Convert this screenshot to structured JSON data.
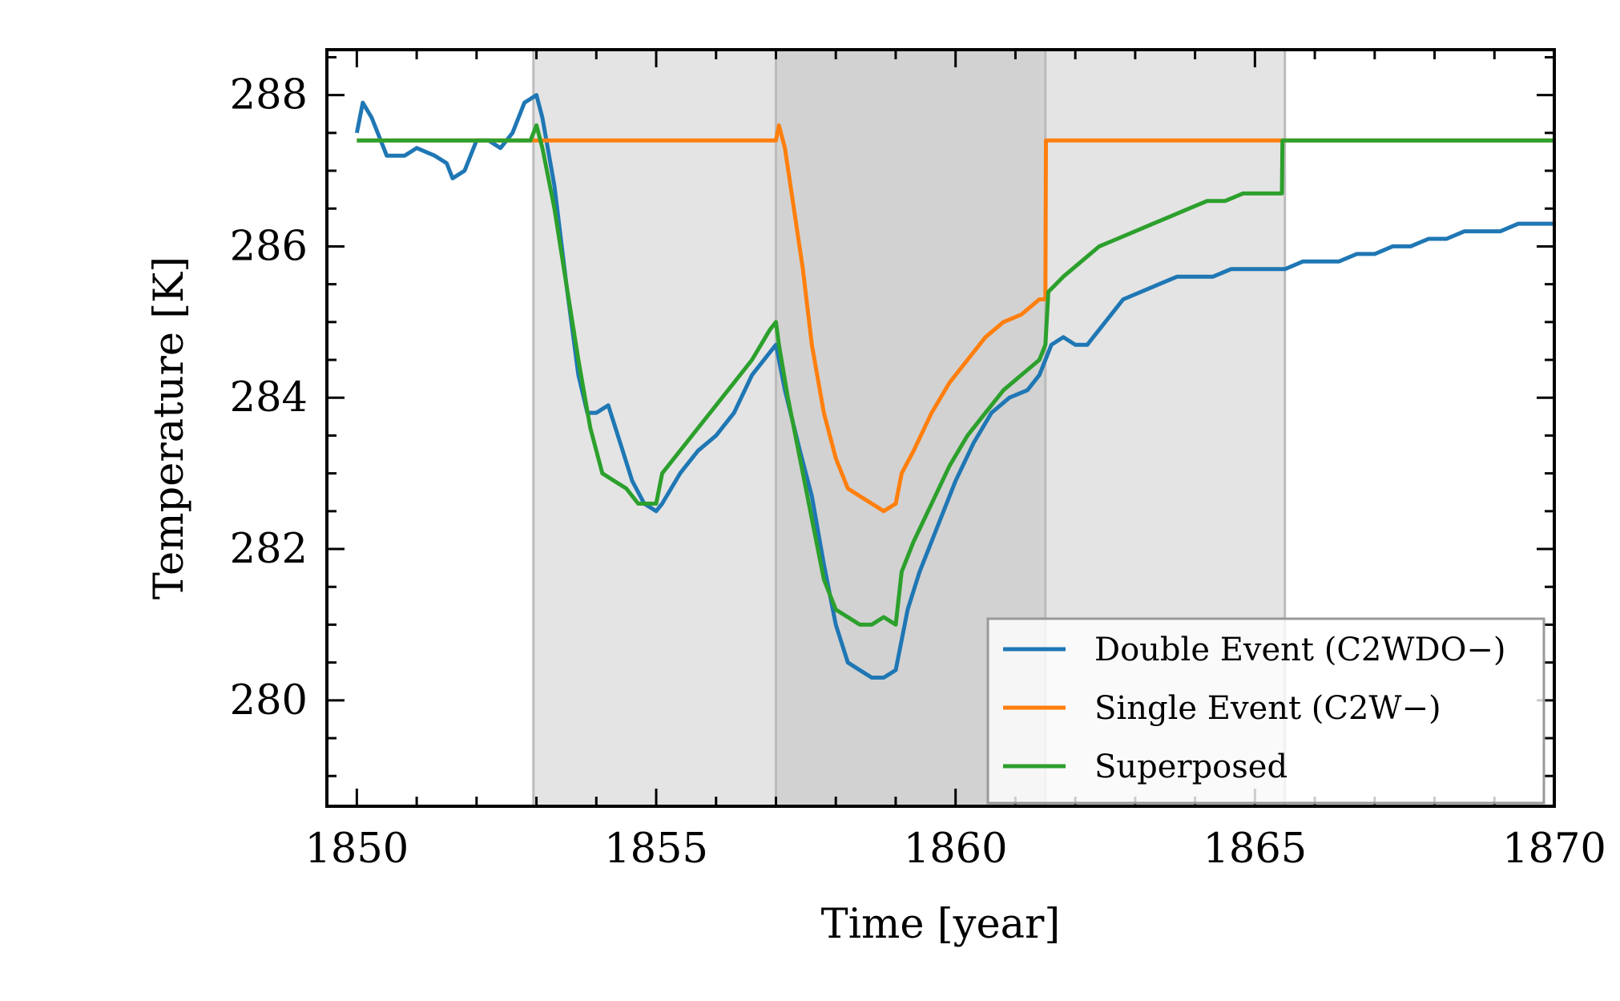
{
  "chart_data": {
    "type": "line",
    "title": "",
    "xlabel": "Time [year]",
    "ylabel": "Temperature [K]",
    "xlim": [
      1849.5,
      1870
    ],
    "ylim": [
      278.6,
      288.6
    ],
    "xticks": [
      1850,
      1855,
      1860,
      1865,
      1870
    ],
    "xtick_labels": [
      "1850",
      "1855",
      "1860",
      "1865",
      "1870"
    ],
    "yticks": [
      280,
      282,
      284,
      286,
      288
    ],
    "ytick_labels": [
      "280",
      "282",
      "284",
      "286",
      "288"
    ],
    "grid": false,
    "legend_position": "lower-right",
    "shaded_regions": [
      {
        "x0": 1852.95,
        "x1": 1857.0,
        "color": "#e4e4e4"
      },
      {
        "x0": 1857.0,
        "x1": 1861.5,
        "color": "#d2d2d2"
      },
      {
        "x0": 1861.5,
        "x1": 1865.5,
        "color": "#e4e4e4"
      }
    ],
    "region_boundaries": [
      1852.95,
      1857.0,
      1861.5,
      1865.5
    ],
    "series": [
      {
        "name": "Double Event (C2WDO−)",
        "color": "#1f77b4",
        "points": [
          [
            1850.0,
            287.5
          ],
          [
            1850.1,
            287.9
          ],
          [
            1850.25,
            287.7
          ],
          [
            1850.5,
            287.2
          ],
          [
            1850.8,
            287.2
          ],
          [
            1851.0,
            287.3
          ],
          [
            1851.3,
            287.2
          ],
          [
            1851.5,
            287.1
          ],
          [
            1851.6,
            286.9
          ],
          [
            1851.8,
            287.0
          ],
          [
            1852.0,
            287.4
          ],
          [
            1852.2,
            287.4
          ],
          [
            1852.4,
            287.3
          ],
          [
            1852.6,
            287.5
          ],
          [
            1852.8,
            287.9
          ],
          [
            1853.0,
            288.0
          ],
          [
            1853.1,
            287.7
          ],
          [
            1853.3,
            286.8
          ],
          [
            1853.5,
            285.5
          ],
          [
            1853.7,
            284.3
          ],
          [
            1853.85,
            283.8
          ],
          [
            1854.0,
            283.8
          ],
          [
            1854.2,
            283.9
          ],
          [
            1854.4,
            283.4
          ],
          [
            1854.6,
            282.9
          ],
          [
            1854.8,
            282.6
          ],
          [
            1855.0,
            282.5
          ],
          [
            1855.1,
            282.6
          ],
          [
            1855.4,
            283.0
          ],
          [
            1855.7,
            283.3
          ],
          [
            1856.0,
            283.5
          ],
          [
            1856.3,
            283.8
          ],
          [
            1856.6,
            284.3
          ],
          [
            1856.9,
            284.6
          ],
          [
            1857.0,
            284.7
          ],
          [
            1857.15,
            284.1
          ],
          [
            1857.4,
            283.3
          ],
          [
            1857.6,
            282.7
          ],
          [
            1857.8,
            281.8
          ],
          [
            1858.0,
            281.0
          ],
          [
            1858.2,
            280.5
          ],
          [
            1858.4,
            280.4
          ],
          [
            1858.6,
            280.3
          ],
          [
            1858.8,
            280.3
          ],
          [
            1859.0,
            280.4
          ],
          [
            1859.2,
            281.2
          ],
          [
            1859.4,
            281.7
          ],
          [
            1859.6,
            282.1
          ],
          [
            1859.8,
            282.5
          ],
          [
            1860.0,
            282.9
          ],
          [
            1860.3,
            283.4
          ],
          [
            1860.6,
            283.8
          ],
          [
            1860.9,
            284.0
          ],
          [
            1861.2,
            284.1
          ],
          [
            1861.4,
            284.3
          ],
          [
            1861.6,
            284.7
          ],
          [
            1861.8,
            284.8
          ],
          [
            1862.0,
            284.7
          ],
          [
            1862.2,
            284.7
          ],
          [
            1862.5,
            285.0
          ],
          [
            1862.8,
            285.3
          ],
          [
            1863.1,
            285.4
          ],
          [
            1863.4,
            285.5
          ],
          [
            1863.7,
            285.6
          ],
          [
            1864.0,
            285.6
          ],
          [
            1864.3,
            285.6
          ],
          [
            1864.6,
            285.7
          ],
          [
            1864.9,
            285.7
          ],
          [
            1865.2,
            285.7
          ],
          [
            1865.5,
            285.7
          ],
          [
            1865.8,
            285.8
          ],
          [
            1866.1,
            285.8
          ],
          [
            1866.4,
            285.8
          ],
          [
            1866.7,
            285.9
          ],
          [
            1867.0,
            285.9
          ],
          [
            1867.3,
            286.0
          ],
          [
            1867.6,
            286.0
          ],
          [
            1867.9,
            286.1
          ],
          [
            1868.2,
            286.1
          ],
          [
            1868.5,
            286.2
          ],
          [
            1868.8,
            286.2
          ],
          [
            1869.1,
            286.2
          ],
          [
            1869.4,
            286.3
          ],
          [
            1869.7,
            286.3
          ],
          [
            1870.0,
            286.3
          ]
        ]
      },
      {
        "name": "Single Event (C2W−)",
        "color": "#ff7f0e",
        "points": [
          [
            1850.0,
            287.4
          ],
          [
            1853.0,
            287.4
          ],
          [
            1857.0,
            287.4
          ],
          [
            1857.05,
            287.6
          ],
          [
            1857.15,
            287.3
          ],
          [
            1857.3,
            286.5
          ],
          [
            1857.45,
            285.7
          ],
          [
            1857.6,
            284.7
          ],
          [
            1857.8,
            283.8
          ],
          [
            1858.0,
            283.2
          ],
          [
            1858.2,
            282.8
          ],
          [
            1858.4,
            282.7
          ],
          [
            1858.6,
            282.6
          ],
          [
            1858.8,
            282.5
          ],
          [
            1859.0,
            282.6
          ],
          [
            1859.1,
            283.0
          ],
          [
            1859.3,
            283.3
          ],
          [
            1859.6,
            283.8
          ],
          [
            1859.9,
            284.2
          ],
          [
            1860.2,
            284.5
          ],
          [
            1860.5,
            284.8
          ],
          [
            1860.8,
            285.0
          ],
          [
            1861.1,
            285.1
          ],
          [
            1861.4,
            285.3
          ],
          [
            1861.5,
            285.3
          ],
          [
            1861.51,
            287.4
          ],
          [
            1870.0,
            287.4
          ]
        ]
      },
      {
        "name": "Superposed",
        "color": "#2ca02c",
        "points": [
          [
            1850.0,
            287.4
          ],
          [
            1852.9,
            287.4
          ],
          [
            1853.0,
            287.6
          ],
          [
            1853.1,
            287.3
          ],
          [
            1853.3,
            286.5
          ],
          [
            1853.5,
            285.5
          ],
          [
            1853.7,
            284.5
          ],
          [
            1853.9,
            283.6
          ],
          [
            1854.1,
            283.0
          ],
          [
            1854.3,
            282.9
          ],
          [
            1854.5,
            282.8
          ],
          [
            1854.7,
            282.6
          ],
          [
            1854.9,
            282.6
          ],
          [
            1855.0,
            282.6
          ],
          [
            1855.1,
            283.0
          ],
          [
            1855.4,
            283.3
          ],
          [
            1855.7,
            283.6
          ],
          [
            1856.0,
            283.9
          ],
          [
            1856.3,
            284.2
          ],
          [
            1856.6,
            284.5
          ],
          [
            1856.9,
            284.9
          ],
          [
            1857.0,
            285.0
          ],
          [
            1857.05,
            284.7
          ],
          [
            1857.2,
            284.0
          ],
          [
            1857.4,
            283.2
          ],
          [
            1857.6,
            282.4
          ],
          [
            1857.8,
            281.6
          ],
          [
            1858.0,
            281.2
          ],
          [
            1858.2,
            281.1
          ],
          [
            1858.4,
            281.0
          ],
          [
            1858.6,
            281.0
          ],
          [
            1858.8,
            281.1
          ],
          [
            1859.0,
            281.0
          ],
          [
            1859.1,
            281.7
          ],
          [
            1859.3,
            282.1
          ],
          [
            1859.6,
            282.6
          ],
          [
            1859.9,
            283.1
          ],
          [
            1860.2,
            283.5
          ],
          [
            1860.5,
            283.8
          ],
          [
            1860.8,
            284.1
          ],
          [
            1861.1,
            284.3
          ],
          [
            1861.4,
            284.5
          ],
          [
            1861.5,
            284.7
          ],
          [
            1861.55,
            285.4
          ],
          [
            1861.8,
            285.6
          ],
          [
            1862.1,
            285.8
          ],
          [
            1862.4,
            286.0
          ],
          [
            1862.7,
            286.1
          ],
          [
            1863.0,
            286.2
          ],
          [
            1863.3,
            286.3
          ],
          [
            1863.6,
            286.4
          ],
          [
            1863.9,
            286.5
          ],
          [
            1864.2,
            286.6
          ],
          [
            1864.5,
            286.6
          ],
          [
            1864.8,
            286.7
          ],
          [
            1865.2,
            286.7
          ],
          [
            1865.45,
            286.7
          ],
          [
            1865.46,
            287.4
          ],
          [
            1870.0,
            287.4
          ]
        ]
      }
    ]
  }
}
